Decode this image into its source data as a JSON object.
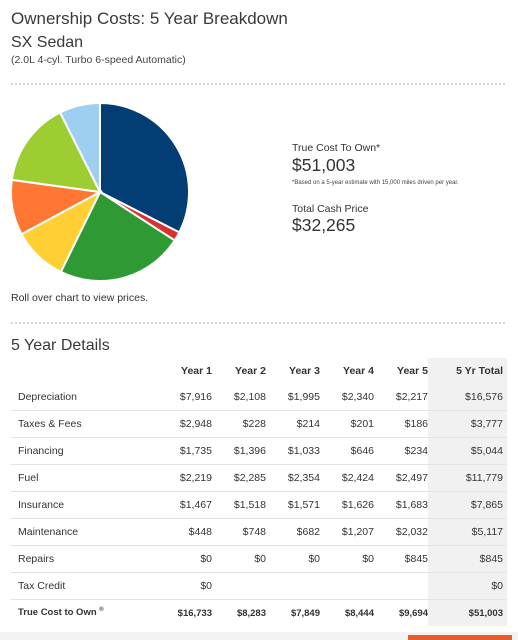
{
  "header": {
    "title": "Ownership Costs: 5 Year Breakdown",
    "model": "SX Sedan",
    "engine": "(2.0L 4-cyl. Turbo 6-speed Automatic)"
  },
  "summary": {
    "true_cost_label": "True Cost To Own*",
    "true_cost_value": "$51,003",
    "true_cost_note": "*Based on a 5-year estimate with 15,000 miles driven per year.",
    "cash_price_label": "Total Cash Price",
    "cash_price_value": "$32,265"
  },
  "chart_hint": "Roll over chart to view prices.",
  "chart_data": {
    "type": "pie",
    "slices": [
      {
        "category": "Depreciation",
        "value": 16576,
        "color": "#023e73"
      },
      {
        "category": "Repairs",
        "value": 845,
        "color": "#d63232"
      },
      {
        "category": "Fuel",
        "value": 11779,
        "color": "#2f9a34"
      },
      {
        "category": "Financing",
        "value": 5044,
        "color": "#ffcf33"
      },
      {
        "category": "Maintenance",
        "value": 5117,
        "color": "#ff7733"
      },
      {
        "category": "Insurance",
        "value": 7865,
        "color": "#9ccd31"
      },
      {
        "category": "Taxes & Fees",
        "value": 3777,
        "color": "#9fcff0"
      }
    ]
  },
  "details": {
    "title": "5 Year Details",
    "columns": [
      "",
      "Year 1",
      "Year 2",
      "Year 3",
      "Year 4",
      "Year 5",
      "5 Yr Total"
    ],
    "rows": [
      {
        "label": "Depreciation",
        "values": [
          "$7,916",
          "$2,108",
          "$1,995",
          "$2,340",
          "$2,217",
          "$16,576"
        ]
      },
      {
        "label": "Taxes & Fees",
        "values": [
          "$2,948",
          "$228",
          "$214",
          "$201",
          "$186",
          "$3,777"
        ]
      },
      {
        "label": "Financing",
        "values": [
          "$1,735",
          "$1,396",
          "$1,033",
          "$646",
          "$234",
          "$5,044"
        ]
      },
      {
        "label": "Fuel",
        "values": [
          "$2,219",
          "$2,285",
          "$2,354",
          "$2,424",
          "$2,497",
          "$11,779"
        ]
      },
      {
        "label": "Insurance",
        "values": [
          "$1,467",
          "$1,518",
          "$1,571",
          "$1,626",
          "$1,683",
          "$7,865"
        ]
      },
      {
        "label": "Maintenance",
        "values": [
          "$448",
          "$748",
          "$682",
          "$1,207",
          "$2,032",
          "$5,117"
        ]
      },
      {
        "label": "Repairs",
        "values": [
          "$0",
          "$0",
          "$0",
          "$0",
          "$845",
          "$845"
        ]
      },
      {
        "label": "Tax Credit",
        "values": [
          "$0",
          "",
          "",
          "",
          "",
          "$0"
        ]
      }
    ],
    "total_row": {
      "label": "True Cost to Own",
      "mark": "®",
      "values": [
        "$16,733",
        "$8,283",
        "$7,849",
        "$8,444",
        "$9,694",
        "$51,003"
      ]
    }
  }
}
